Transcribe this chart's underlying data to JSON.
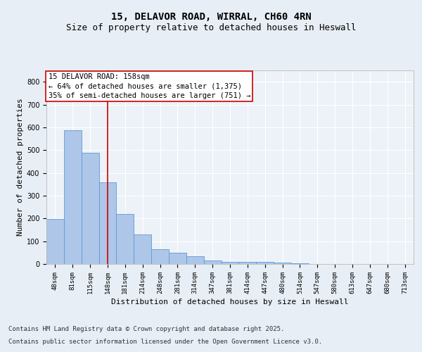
{
  "title": "15, DELAVOR ROAD, WIRRAL, CH60 4RN",
  "subtitle": "Size of property relative to detached houses in Heswall",
  "xlabel": "Distribution of detached houses by size in Heswall",
  "ylabel": "Number of detached properties",
  "categories": [
    "48sqm",
    "81sqm",
    "115sqm",
    "148sqm",
    "181sqm",
    "214sqm",
    "248sqm",
    "281sqm",
    "314sqm",
    "347sqm",
    "381sqm",
    "414sqm",
    "447sqm",
    "480sqm",
    "514sqm",
    "547sqm",
    "580sqm",
    "613sqm",
    "647sqm",
    "680sqm",
    "713sqm"
  ],
  "values": [
    197,
    588,
    488,
    360,
    218,
    130,
    65,
    50,
    35,
    17,
    10,
    10,
    8,
    5,
    3,
    0,
    0,
    0,
    0,
    0,
    0
  ],
  "bar_color": "#aec6e8",
  "bar_edge_color": "#5b9bd5",
  "bar_linewidth": 0.6,
  "vline_x": 3.0,
  "vline_color": "#cc0000",
  "annotation_line1": "15 DELAVOR ROAD: 158sqm",
  "annotation_line2": "← 64% of detached houses are smaller (1,375)",
  "annotation_line3": "35% of semi-detached houses are larger (751) →",
  "ylim": [
    0,
    850
  ],
  "yticks": [
    0,
    100,
    200,
    300,
    400,
    500,
    600,
    700,
    800
  ],
  "bg_color": "#e8eef5",
  "plot_bg_color": "#edf2f8",
  "grid_color": "#ffffff",
  "footer_line1": "Contains HM Land Registry data © Crown copyright and database right 2025.",
  "footer_line2": "Contains public sector information licensed under the Open Government Licence v3.0.",
  "title_fontsize": 10,
  "subtitle_fontsize": 9,
  "axis_label_fontsize": 8,
  "tick_fontsize": 6.5,
  "annotation_fontsize": 7.5,
  "footer_fontsize": 6.5
}
